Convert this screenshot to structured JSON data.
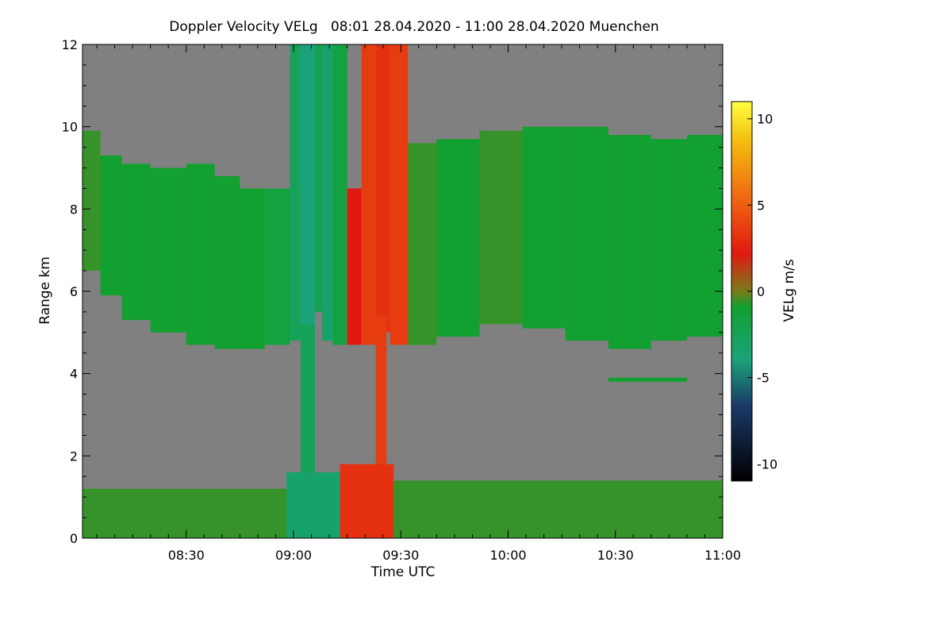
{
  "chart_data": {
    "type": "heatmap",
    "title": "Doppler Velocity VELg   08:01 28.04.2020 - 11:00 28.04.2020 Muenchen",
    "xlabel": "Time UTC",
    "ylabel": "Range km",
    "x_unit": "minutes after 08:00 UTC",
    "xlim": [
      1,
      180
    ],
    "ylim": [
      0,
      12
    ],
    "x_ticks": [
      {
        "value": 30,
        "label": "08:30"
      },
      {
        "value": 60,
        "label": "09:00"
      },
      {
        "value": 90,
        "label": "09:30"
      },
      {
        "value": 120,
        "label": "10:00"
      },
      {
        "value": 150,
        "label": "10:30"
      },
      {
        "value": 180,
        "label": "11:00"
      }
    ],
    "y_ticks": [
      {
        "value": 0,
        "label": "0"
      },
      {
        "value": 2,
        "label": "2"
      },
      {
        "value": 4,
        "label": "4"
      },
      {
        "value": 6,
        "label": "6"
      },
      {
        "value": 8,
        "label": "8"
      },
      {
        "value": 10,
        "label": "10"
      },
      {
        "value": 12,
        "label": "12"
      }
    ],
    "colorbar": {
      "label": "VELg m/s",
      "range": [
        -11,
        11
      ],
      "ticks": [
        {
          "value": 10,
          "label": "10"
        },
        {
          "value": 5,
          "label": "5"
        },
        {
          "value": 0,
          "label": "0"
        },
        {
          "value": -5,
          "label": "-5"
        },
        {
          "value": -10,
          "label": "-10"
        }
      ]
    },
    "background_color": "#808080",
    "regions": [
      {
        "x": [
          1,
          6
        ],
        "y": [
          6.5,
          9.9
        ],
        "value": -1
      },
      {
        "x": [
          6,
          12
        ],
        "y": [
          5.9,
          9.3
        ],
        "value": -1.5
      },
      {
        "x": [
          12,
          20
        ],
        "y": [
          5.3,
          9.1
        ],
        "value": -1.5
      },
      {
        "x": [
          20,
          30
        ],
        "y": [
          5.0,
          9.0
        ],
        "value": -1.5
      },
      {
        "x": [
          30,
          38
        ],
        "y": [
          4.7,
          9.1
        ],
        "value": -1.5
      },
      {
        "x": [
          38,
          45
        ],
        "y": [
          4.6,
          8.8
        ],
        "value": -1.5
      },
      {
        "x": [
          45,
          52
        ],
        "y": [
          4.6,
          8.5
        ],
        "value": -1.5
      },
      {
        "x": [
          52,
          59
        ],
        "y": [
          4.7,
          8.5
        ],
        "value": -2
      },
      {
        "x": [
          59,
          62
        ],
        "y": [
          4.8,
          12
        ],
        "value": -3
      },
      {
        "x": [
          62,
          66
        ],
        "y": [
          0,
          12
        ],
        "value": -4
      },
      {
        "x": [
          66,
          68
        ],
        "y": [
          5.5,
          12
        ],
        "value": -2.5
      },
      {
        "x": [
          68,
          71
        ],
        "y": [
          4.8,
          12
        ],
        "value": -3.5
      },
      {
        "x": [
          71,
          75
        ],
        "y": [
          4.7,
          12
        ],
        "value": -2
      },
      {
        "x": [
          75,
          79
        ],
        "y": [
          4.7,
          8.5
        ],
        "value": 1.5
      },
      {
        "x": [
          79,
          83
        ],
        "y": [
          4.7,
          12
        ],
        "value": 3
      },
      {
        "x": [
          83,
          87
        ],
        "y": [
          5.0,
          12
        ],
        "value": 2.5
      },
      {
        "x": [
          87,
          92
        ],
        "y": [
          4.7,
          12
        ],
        "value": 3
      },
      {
        "x": [
          92,
          100
        ],
        "y": [
          4.7,
          9.6
        ],
        "value": -1
      },
      {
        "x": [
          100,
          112
        ],
        "y": [
          4.9,
          9.7
        ],
        "value": -1.5
      },
      {
        "x": [
          112,
          124
        ],
        "y": [
          5.2,
          9.9
        ],
        "value": -1
      },
      {
        "x": [
          124,
          136
        ],
        "y": [
          5.1,
          10.0
        ],
        "value": -1.5
      },
      {
        "x": [
          136,
          148
        ],
        "y": [
          4.8,
          10.0
        ],
        "value": -1.5
      },
      {
        "x": [
          148,
          160
        ],
        "y": [
          4.6,
          9.8
        ],
        "value": -1.5
      },
      {
        "x": [
          160,
          170
        ],
        "y": [
          4.8,
          9.7
        ],
        "value": -1.5
      },
      {
        "x": [
          170,
          180
        ],
        "y": [
          4.9,
          9.8
        ],
        "value": -1.5
      },
      {
        "x": [
          62,
          66
        ],
        "y": [
          0,
          5.2
        ],
        "value": -3
      },
      {
        "x": [
          58,
          73
        ],
        "y": [
          0,
          1.6
        ],
        "value": -3.5
      },
      {
        "x": [
          73,
          88
        ],
        "y": [
          0,
          1.8
        ],
        "value": 2.5
      },
      {
        "x": [
          83,
          86
        ],
        "y": [
          1.8,
          5.4
        ],
        "value": 3
      },
      {
        "x": [
          1,
          58
        ],
        "y": [
          0,
          1.2
        ],
        "value": -1
      },
      {
        "x": [
          88,
          180
        ],
        "y": [
          0,
          1.4
        ],
        "value": -1
      },
      {
        "x": [
          148,
          170
        ],
        "y": [
          3.8,
          3.9
        ],
        "value": -1.5
      }
    ]
  }
}
